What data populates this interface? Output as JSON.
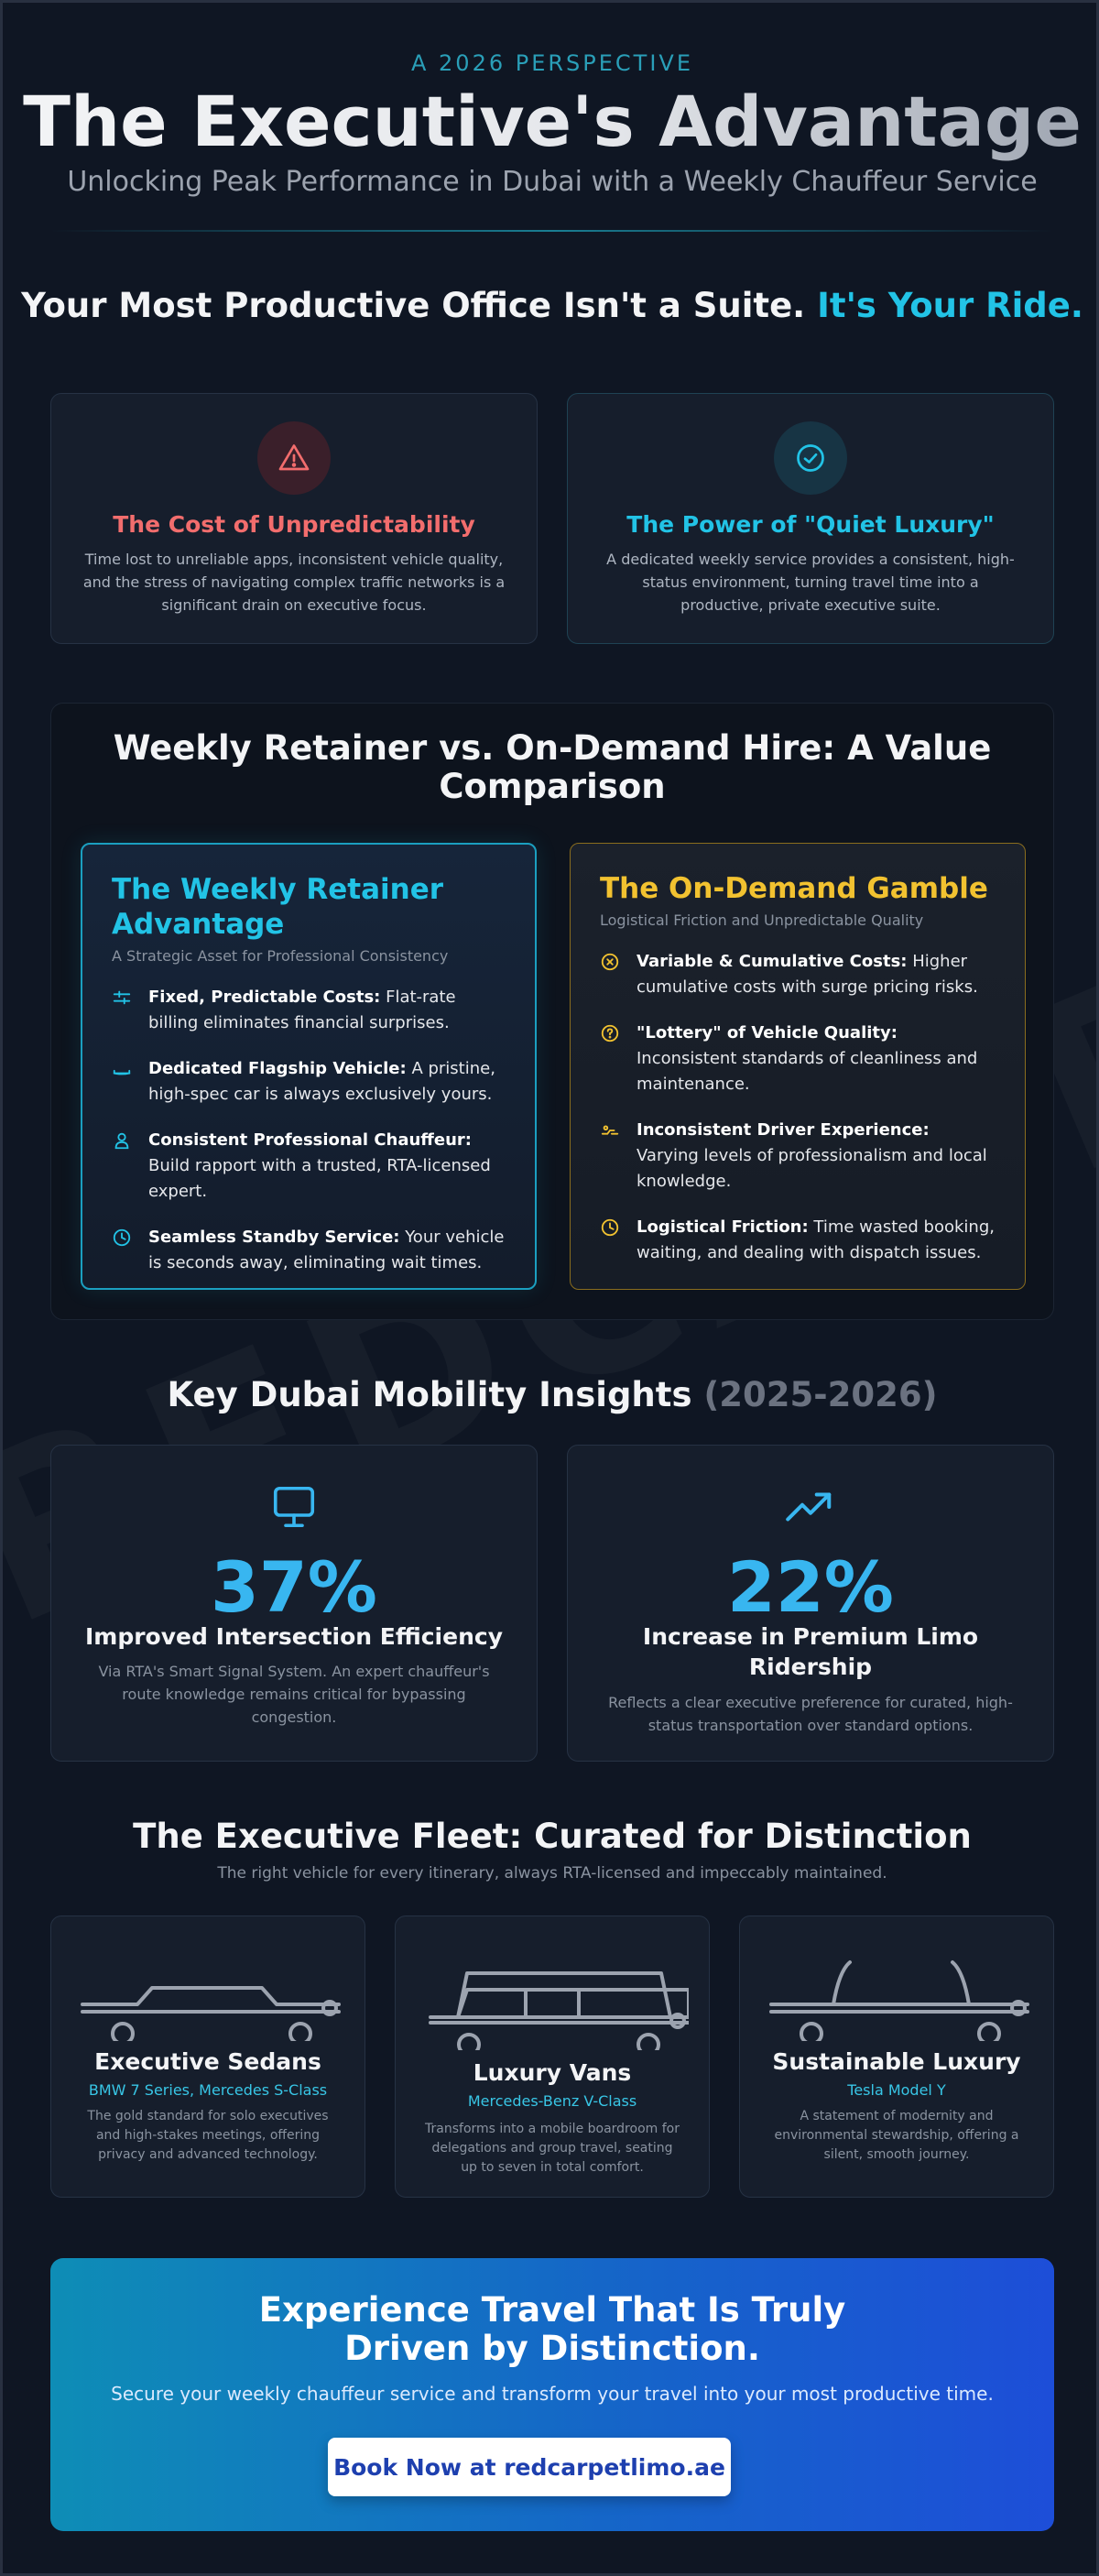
{
  "header": {
    "eyebrow": "A 2026 PERSPECTIVE",
    "title": "The Executive's Advantage",
    "subtitle": "Unlocking Peak Performance in Dubai with a Weekly Chauffeur Service"
  },
  "watermark": "REDCARPETLIMO",
  "intro": {
    "heading_main": "Your Most Productive Office Isn't a Suite.",
    "heading_accent": "It's Your Ride.",
    "cards": [
      {
        "icon": "warning-icon",
        "title": "The Cost of Unpredictability",
        "color": "#f26d6d",
        "text": "Time lost to unreliable apps, inconsistent vehicle quality, and the stress of navigating complex traffic networks is a significant drain on executive focus."
      },
      {
        "icon": "check-circle-icon",
        "title": "The Power of \"Quiet Luxury\"",
        "color": "#22c3e6",
        "text": "A dedicated weekly service provides a consistent, high-status environment, turning travel time into a productive, private executive suite."
      }
    ]
  },
  "comparison": {
    "title_line1": "Weekly Retainer vs. On-Demand Hire: A Value",
    "title_line2": "Comparison",
    "retainer": {
      "title_line1": "The Weekly Retainer",
      "title_line2": "Advantage",
      "subtitle": "A Strategic Asset for Professional Consistency",
      "color": "#22c3e6",
      "items": [
        {
          "icon": "sliders-icon",
          "bold": "Fixed, Predictable Costs:",
          "text": " Flat-rate billing eliminates financial surprises."
        },
        {
          "icon": "car-icon",
          "bold": "Dedicated Flagship Vehicle:",
          "text": " A pristine, high-spec car is always exclusively yours."
        },
        {
          "icon": "user-icon",
          "bold": "Consistent Professional Chauffeur:",
          "text": " Build rapport with a trusted, RTA-licensed expert."
        },
        {
          "icon": "clock-icon",
          "bold": "Seamless Standby Service:",
          "text": " Your vehicle is seconds away, eliminating wait times."
        }
      ]
    },
    "ondemand": {
      "title": "The On-Demand Gamble",
      "subtitle": "Logistical Friction and Unpredictable Quality",
      "color": "#f2c230",
      "items": [
        {
          "icon": "x-circle-icon",
          "bold": "Variable & Cumulative Costs:",
          "text": " Higher cumulative costs with surge pricing risks."
        },
        {
          "icon": "question-circle-icon",
          "bold": "\"Lottery\" of Vehicle Quality:",
          "text": " Inconsistent standards of cleanliness and maintenance."
        },
        {
          "icon": "driver-icon",
          "bold": "Inconsistent Driver Experience:",
          "text": " Varying levels of professionalism and local knowledge."
        },
        {
          "icon": "clock-icon",
          "bold": "Logistical Friction:",
          "text": " Time wasted booking, waiting, and dealing with dispatch issues."
        }
      ]
    }
  },
  "insights": {
    "heading_main": "Key Dubai Mobility Insights",
    "heading_year": "(2025-2026)",
    "cards": [
      {
        "icon": "monitor-icon",
        "value": "37%",
        "label": "Improved Intersection Efficiency",
        "desc": "Via RTA's Smart Signal System. An expert chauffeur's route knowledge remains critical for bypassing congestion."
      },
      {
        "icon": "trending-up-icon",
        "value": "22%",
        "label_line1": "Increase in Premium Limo",
        "label_line2": "Ridership",
        "desc": "Reflects a clear executive preference for curated, high-status transportation over standard options."
      }
    ]
  },
  "fleet": {
    "heading": "The Executive Fleet: Curated for Distinction",
    "subheading": "The right vehicle for every itinerary, always RTA-licensed and impeccably maintained.",
    "cards": [
      {
        "icon": "sedan-icon",
        "name": "Executive Sedans",
        "models": "BMW 7 Series, Mercedes S-Class",
        "desc": "The gold standard for solo executives and high-stakes meetings, offering privacy and advanced technology."
      },
      {
        "icon": "van-icon",
        "name": "Luxury Vans",
        "models": "Mercedes-Benz V-Class",
        "desc": "Transforms into a mobile boardroom for delegations and group travel, seating up to seven in total comfort."
      },
      {
        "icon": "ev-car-icon",
        "name": "Sustainable Luxury",
        "models": "Tesla Model Y",
        "desc": "A statement of modernity and environmental stewardship, offering a silent, smooth journey."
      }
    ]
  },
  "cta": {
    "title_line1": "Experience Travel That Is Truly",
    "title_line2": "Driven by Distinction.",
    "text": "Secure your weekly chauffeur service and transform your travel into your most productive time.",
    "button": "Book Now at redcarpetlimo.ae"
  }
}
